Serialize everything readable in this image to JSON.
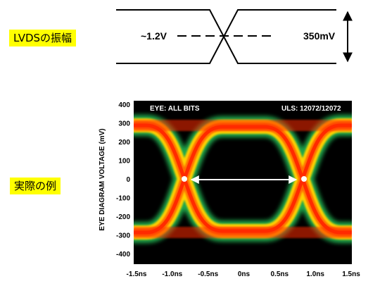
{
  "labels": {
    "lvds_amplitude": "LVDSの振幅",
    "actual_example": "実際の例"
  },
  "schematic": {
    "left_voltage": "~1.2V",
    "swing": "350mV"
  },
  "eye_plot": {
    "top_left_title": "EYE: ALL BITS",
    "top_right_title": "ULS: 12072/12072",
    "ylabel": "EYE DIAGRAM VOLTAGE (mV)",
    "y_ticks": [
      "400",
      "300",
      "200",
      "100",
      "0",
      "-100",
      "-200",
      "-300",
      "-400"
    ],
    "x_ticks": [
      "-1.5ns",
      "-1.0ns",
      "-0.5ns",
      "0ns",
      "0.5ns",
      "1.0ns",
      "1.5ns"
    ]
  },
  "colors": {
    "label_bg": "#ffff00",
    "plot_bg": "#000000",
    "eye_hot": "#ff2a00",
    "eye_mid": "#ffd200",
    "eye_edge": "#33cc55"
  }
}
